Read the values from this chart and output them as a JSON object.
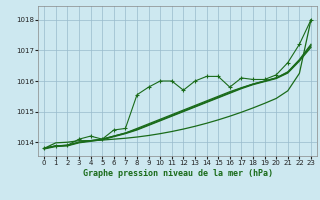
{
  "title": "Graphe pression niveau de la mer (hPa)",
  "background_color": "#cde8f0",
  "grid_color": "#99bbcc",
  "line_color": "#1a6b1a",
  "xlim": [
    -0.5,
    23.5
  ],
  "ylim": [
    1013.55,
    1018.45
  ],
  "yticks": [
    1014,
    1015,
    1016,
    1017,
    1018
  ],
  "xticks": [
    0,
    1,
    2,
    3,
    4,
    5,
    6,
    7,
    8,
    9,
    10,
    11,
    12,
    13,
    14,
    15,
    16,
    17,
    18,
    19,
    20,
    21,
    22,
    23
  ],
  "series_smooth1": [
    1013.8,
    1013.88,
    1013.9,
    1014.0,
    1014.05,
    1014.1,
    1014.2,
    1014.3,
    1014.45,
    1014.6,
    1014.75,
    1014.9,
    1015.05,
    1015.2,
    1015.35,
    1015.5,
    1015.65,
    1015.78,
    1015.9,
    1016.0,
    1016.1,
    1016.3,
    1016.7,
    1017.2
  ],
  "series_smooth2": [
    1013.8,
    1013.88,
    1013.9,
    1014.0,
    1014.05,
    1014.1,
    1014.2,
    1014.3,
    1014.42,
    1014.57,
    1014.72,
    1014.87,
    1015.02,
    1015.17,
    1015.32,
    1015.47,
    1015.62,
    1015.77,
    1015.9,
    1016.0,
    1016.1,
    1016.28,
    1016.68,
    1017.15
  ],
  "series_smooth3": [
    1013.78,
    1013.86,
    1013.88,
    1013.98,
    1014.03,
    1014.08,
    1014.18,
    1014.28,
    1014.4,
    1014.55,
    1014.7,
    1014.85,
    1015.0,
    1015.15,
    1015.3,
    1015.45,
    1015.6,
    1015.75,
    1015.88,
    1015.98,
    1016.08,
    1016.26,
    1016.65,
    1017.1
  ],
  "series_zigzag": [
    1013.8,
    1013.88,
    1013.9,
    1014.1,
    1014.2,
    1014.1,
    1014.4,
    1014.45,
    1015.55,
    1015.8,
    1016.0,
    1016.0,
    1015.7,
    1016.0,
    1016.15,
    1016.15,
    1015.8,
    1016.1,
    1016.05,
    1016.05,
    1016.2,
    1016.6,
    1017.2,
    1018.0
  ],
  "series_linear": [
    1013.8,
    1013.98,
    1014.0,
    1014.05,
    1014.05,
    1014.07,
    1014.1,
    1014.13,
    1014.17,
    1014.22,
    1014.28,
    1014.35,
    1014.43,
    1014.52,
    1014.62,
    1014.73,
    1014.85,
    1014.98,
    1015.12,
    1015.27,
    1015.43,
    1015.68,
    1016.25,
    1018.0
  ]
}
